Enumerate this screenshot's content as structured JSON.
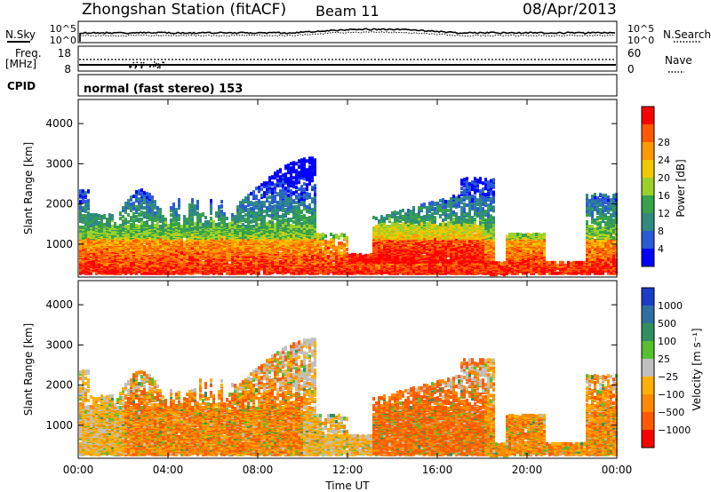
{
  "header": {
    "station": "Zhongshan Station (fitACF)",
    "beam": "Beam 11",
    "date": "08/Apr/2013"
  },
  "top_panels": {
    "nsky_label": "N.Sky",
    "nsky_ticks": [
      "10^5",
      "10^0"
    ],
    "nsearch_label": "N.Search",
    "nsearch_ticks": [
      "10^5",
      "10^0"
    ],
    "freq_label": "Freq.",
    "freq_unit": "[MHz]",
    "freq_ticks": [
      "18",
      "8"
    ],
    "nave_label": "Nave",
    "nave_ticks": [
      "60",
      "0"
    ],
    "cpid_label": "CPID",
    "cpid_text": "normal (fast stereo) 153"
  },
  "chart_data": [
    {
      "type": "heatmap",
      "name": "power",
      "ylabel": "Slant Range [km]",
      "ylim": [
        180,
        4600
      ],
      "yticks": [
        "1000",
        "2000",
        "3000",
        "4000"
      ],
      "colorbar_label": "Power [dB]",
      "colorbar_ticks": [
        "4",
        "8",
        "12",
        "16",
        "20",
        "24",
        "28"
      ],
      "colors": [
        "#0000ff",
        "#2a5bd7",
        "#2f8a80",
        "#36a24a",
        "#9cd12a",
        "#f0c800",
        "#ff9900",
        "#ff5a00",
        "#ff0000"
      ]
    },
    {
      "type": "heatmap",
      "name": "velocity",
      "ylabel": "Slant Range [km]",
      "ylim": [
        180,
        4600
      ],
      "yticks": [
        "1000",
        "2000",
        "3000",
        "4000"
      ],
      "xlabel": "Time UT",
      "xticks": [
        "00:00",
        "04:00",
        "08:00",
        "12:00",
        "16:00",
        "20:00",
        "00:00"
      ],
      "colorbar_label": "Velocity [m s⁻¹]",
      "colorbar_ticks": [
        "1000",
        "500",
        "100",
        "25",
        "−25",
        "−100",
        "−500",
        "−1000"
      ],
      "colors": [
        "#1a3cc8",
        "#2f6fa0",
        "#2f8f60",
        "#55c030",
        "#c0c0c0",
        "#ffb000",
        "#ff8a00",
        "#ff5a00",
        "#ff0000"
      ]
    }
  ]
}
